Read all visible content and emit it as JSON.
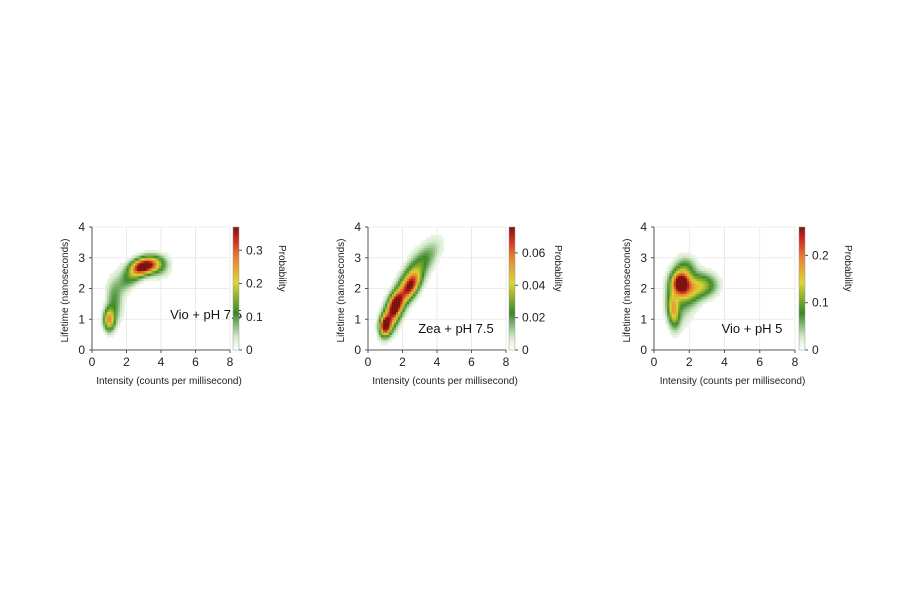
{
  "chart_data": [
    {
      "type": "heatmap",
      "annotation": "Vio + pH 7.5",
      "xlabel": "Intensity (counts per millisecond)",
      "ylabel": "Lifetime (nanoseconds)",
      "colorbar_label": "Probability",
      "xlim": [
        0,
        8
      ],
      "ylim": [
        0,
        4
      ],
      "x_ticks": [
        "0",
        "2",
        "4",
        "6",
        "8"
      ],
      "y_ticks": [
        "0",
        "1",
        "2",
        "3",
        "4"
      ],
      "colorbar_range": [
        0,
        0.37
      ],
      "colorbar_ticks": [
        {
          "value": 0,
          "label": "0"
        },
        {
          "value": 0.1,
          "label": "0.1"
        },
        {
          "value": 0.2,
          "label": "0.2"
        },
        {
          "value": 0.3,
          "label": "0.3"
        }
      ],
      "grid": true,
      "density_peaks": [
        {
          "x": 3.1,
          "y": 2.75,
          "value": 0.37
        },
        {
          "x": 1.0,
          "y": 1.0,
          "value": 0.25
        }
      ]
    },
    {
      "type": "heatmap",
      "annotation": "Zea + pH 7.5",
      "xlabel": "Intensity (counts per millisecond)",
      "ylabel": "Lifetime (nanoseconds)",
      "colorbar_label": "Probability",
      "xlim": [
        0,
        8
      ],
      "ylim": [
        0,
        4
      ],
      "x_ticks": [
        "0",
        "2",
        "4",
        "6",
        "8"
      ],
      "y_ticks": [
        "0",
        "1",
        "2",
        "3",
        "4"
      ],
      "colorbar_range": [
        0,
        0.076
      ],
      "colorbar_ticks": [
        {
          "value": 0,
          "label": "0"
        },
        {
          "value": 0.02,
          "label": "0.02"
        },
        {
          "value": 0.04,
          "label": "0.04"
        },
        {
          "value": 0.06,
          "label": "0.06"
        }
      ],
      "grid": true,
      "density_peaks": [
        {
          "x": 1.0,
          "y": 0.8,
          "value": 0.076
        },
        {
          "x": 1.6,
          "y": 1.5,
          "value": 0.06
        },
        {
          "x": 2.5,
          "y": 2.1,
          "value": 0.05
        }
      ]
    },
    {
      "type": "heatmap",
      "annotation": "Vio + pH 5",
      "xlabel": "Intensity (counts per millisecond)",
      "ylabel": "Lifetime (nanoseconds)",
      "colorbar_label": "Probability",
      "xlim": [
        0,
        8
      ],
      "ylim": [
        0,
        4
      ],
      "x_ticks": [
        "0",
        "2",
        "4",
        "6",
        "8"
      ],
      "y_ticks": [
        "0",
        "1",
        "2",
        "3",
        "4"
      ],
      "colorbar_range": [
        0,
        0.26
      ],
      "colorbar_ticks": [
        {
          "value": 0,
          "label": "0"
        },
        {
          "value": 0.1,
          "label": "0.1"
        },
        {
          "value": 0.2,
          "label": "0.2"
        }
      ],
      "grid": true,
      "density_peaks": [
        {
          "x": 1.5,
          "y": 2.2,
          "value": 0.26
        },
        {
          "x": 1.1,
          "y": 1.3,
          "value": 0.13
        }
      ]
    }
  ]
}
